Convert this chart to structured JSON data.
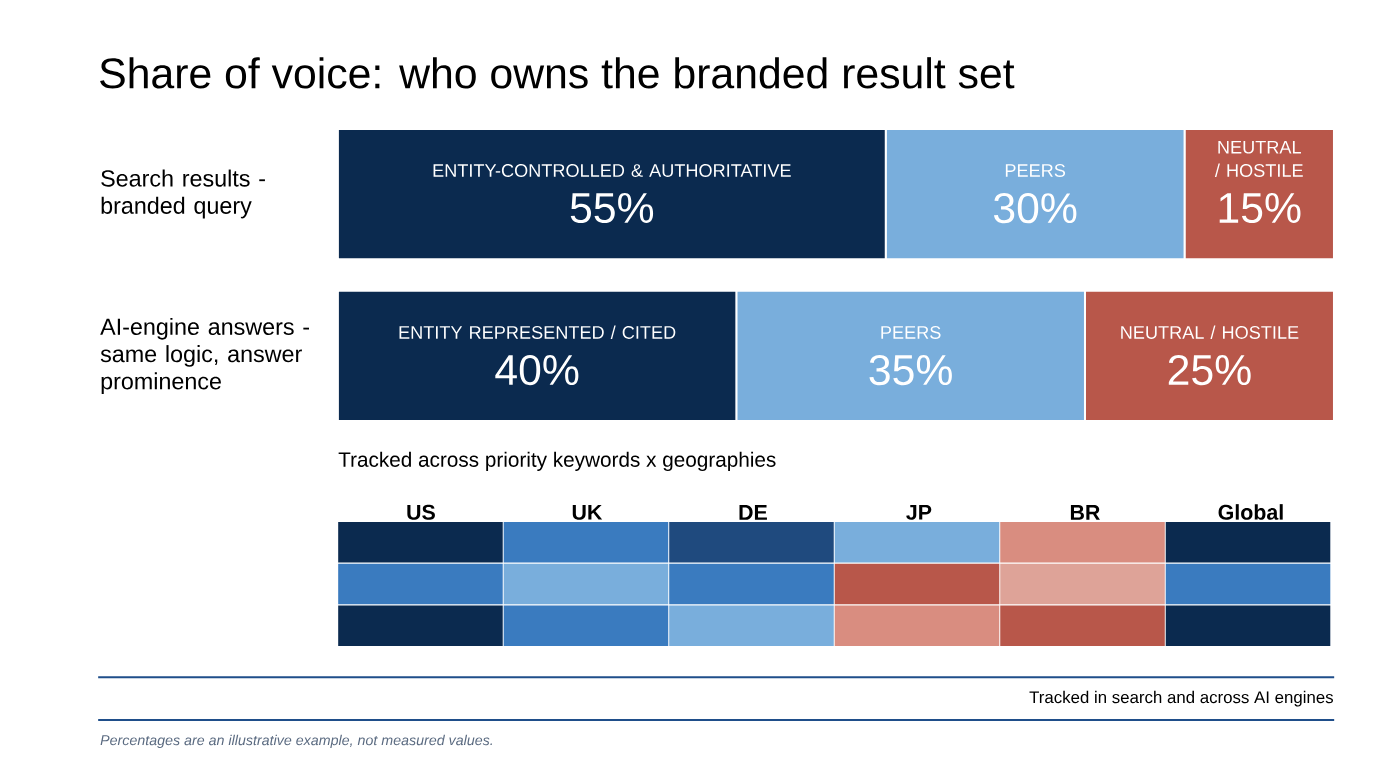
{
  "chart_data": [
    {
      "type": "bar",
      "orientation": "horizontal",
      "stacked": true,
      "title": "Share of voice: who owns the branded result set",
      "categories": [
        "Search results - branded query",
        "AI-engine answers - same logic, answer prominence"
      ],
      "series": [
        {
          "color": "#0b2a4f",
          "values": [
            55,
            40
          ],
          "value_labels": [
            "55%",
            "40%"
          ]
        },
        {
          "color": "#79aedc",
          "values": [
            30,
            35
          ],
          "value_labels": [
            "30%",
            "35%"
          ]
        },
        {
          "color": "#b8574a",
          "values": [
            15,
            25
          ],
          "value_labels": [
            "15%",
            "25%"
          ]
        }
      ],
      "tick_labels": "y",
      "annotations": [
        "ENTITY-CONTROLLED & AUTHORITATIVE",
        "PEERS",
        "NEUTRAL / HOSTILE",
        "ENTITY REPRESENTED / CITED",
        "PEERS",
        "NEUTRAL / HOSTILE",
        "Tracked in search and across AI engines",
        "Percentages are an illustrative example, not measured values."
      ]
    },
    {
      "type": "other",
      "title": "Tracked across priority keywords x geographies",
      "categories": [
        "US",
        "UK",
        "DE",
        "JP",
        "BR",
        "Global"
      ]
    }
  ]
}
